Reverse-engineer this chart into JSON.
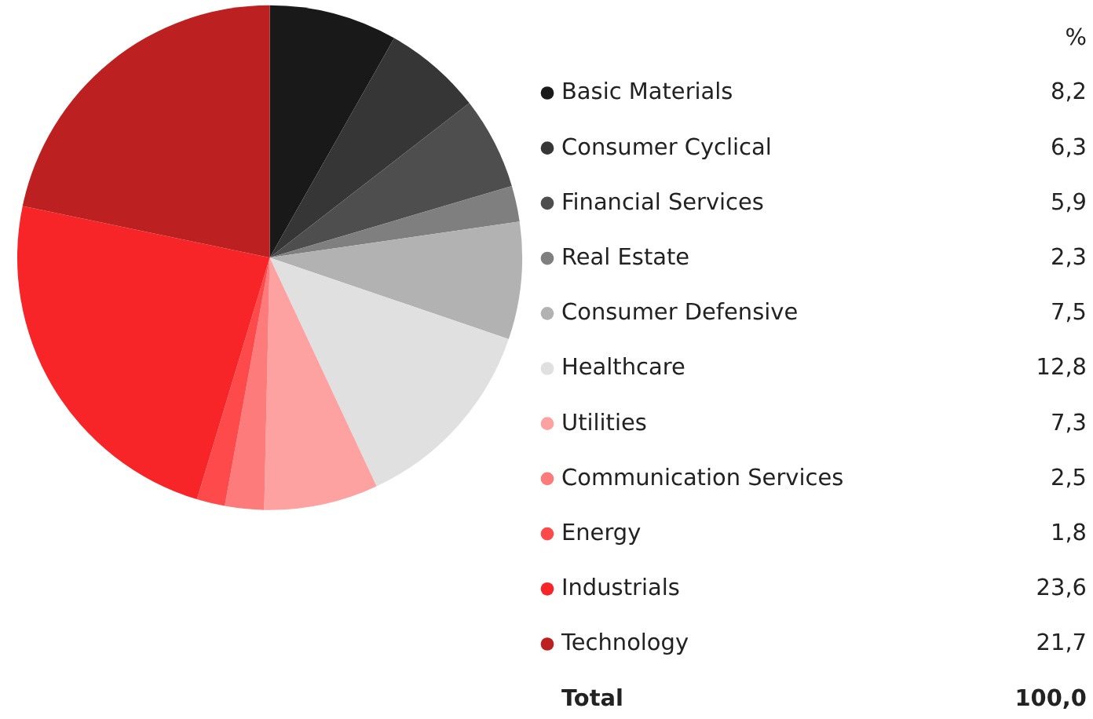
{
  "chart_data": {
    "type": "pie",
    "categories": [
      "Basic Materials",
      "Consumer Cyclical",
      "Financial Services",
      "Real Estate",
      "Consumer Defensive",
      "Healthcare",
      "Utilities",
      "Communication Services",
      "Energy",
      "Industrials",
      "Technology"
    ],
    "values": [
      8.2,
      6.3,
      5.9,
      2.3,
      7.5,
      12.8,
      7.3,
      2.5,
      1.8,
      23.6,
      21.7
    ],
    "value_labels": [
      "8,2",
      "6,3",
      "5,9",
      "2,3",
      "7,5",
      "12,8",
      "7,3",
      "2,5",
      "1,8",
      "23,6",
      "21,7"
    ],
    "colors": [
      "#191919",
      "#363636",
      "#4e4e4e",
      "#7f7f7f",
      "#b2b2b2",
      "#e1e0e0",
      "#fea1a1",
      "#fe7b7b",
      "#fe4a4a",
      "#f72528",
      "#bd2021"
    ],
    "legend_title": "%",
    "legend": "right",
    "annotations": [
      "Total",
      "100,0"
    ]
  }
}
